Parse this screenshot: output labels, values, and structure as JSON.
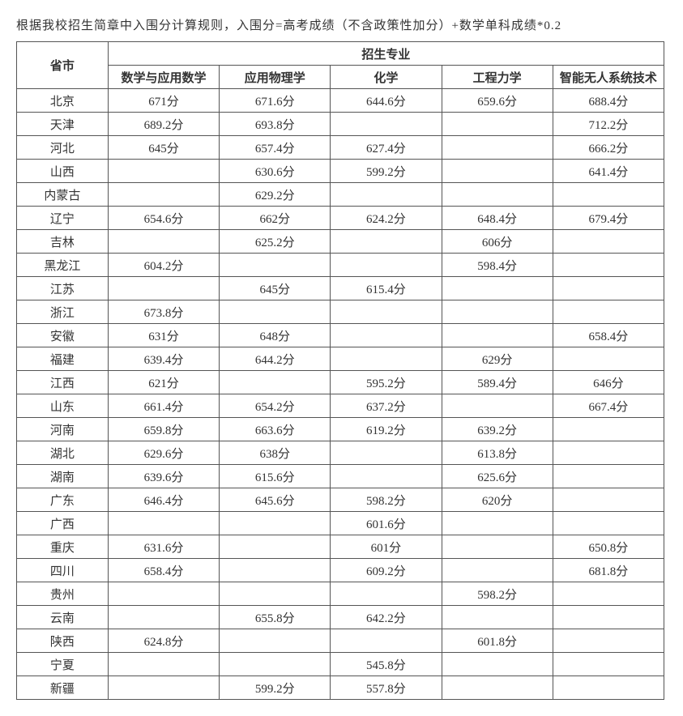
{
  "intro_text": "根据我校招生简章中入围分计算规则，入围分=高考成绩（不含政策性加分）+数学单科成绩*0.2",
  "header": {
    "province_label": "省市",
    "major_group_label": "招生专业",
    "majors": [
      "数学与应用数学",
      "应用物理学",
      "化学",
      "工程力学",
      "智能无人系统技术"
    ]
  },
  "rows": [
    {
      "province": "北京",
      "cells": [
        "671分",
        "671.6分",
        "644.6分",
        "659.6分",
        "688.4分"
      ]
    },
    {
      "province": "天津",
      "cells": [
        "689.2分",
        "693.8分",
        "",
        "",
        "712.2分"
      ]
    },
    {
      "province": "河北",
      "cells": [
        "645分",
        "657.4分",
        "627.4分",
        "",
        "666.2分"
      ]
    },
    {
      "province": "山西",
      "cells": [
        "",
        "630.6分",
        "599.2分",
        "",
        "641.4分"
      ]
    },
    {
      "province": "内蒙古",
      "cells": [
        "",
        "629.2分",
        "",
        "",
        ""
      ]
    },
    {
      "province": "辽宁",
      "cells": [
        "654.6分",
        "662分",
        "624.2分",
        "648.4分",
        "679.4分"
      ]
    },
    {
      "province": "吉林",
      "cells": [
        "",
        "625.2分",
        "",
        "606分",
        ""
      ]
    },
    {
      "province": "黑龙江",
      "cells": [
        "604.2分",
        "",
        "",
        "598.4分",
        ""
      ]
    },
    {
      "province": "江苏",
      "cells": [
        "",
        "645分",
        "615.4分",
        "",
        ""
      ]
    },
    {
      "province": "浙江",
      "cells": [
        "673.8分",
        "",
        "",
        "",
        ""
      ]
    },
    {
      "province": "安徽",
      "cells": [
        "631分",
        "648分",
        "",
        "",
        "658.4分"
      ]
    },
    {
      "province": "福建",
      "cells": [
        "639.4分",
        "644.2分",
        "",
        "629分",
        ""
      ]
    },
    {
      "province": "江西",
      "cells": [
        "621分",
        "",
        "595.2分",
        "589.4分",
        "646分"
      ]
    },
    {
      "province": "山东",
      "cells": [
        "661.4分",
        "654.2分",
        "637.2分",
        "",
        "667.4分"
      ]
    },
    {
      "province": "河南",
      "cells": [
        "659.8分",
        "663.6分",
        "619.2分",
        "639.2分",
        ""
      ]
    },
    {
      "province": "湖北",
      "cells": [
        "629.6分",
        "638分",
        "",
        "613.8分",
        ""
      ]
    },
    {
      "province": "湖南",
      "cells": [
        "639.6分",
        "615.6分",
        "",
        "625.6分",
        ""
      ]
    },
    {
      "province": "广东",
      "cells": [
        "646.4分",
        "645.6分",
        "598.2分",
        "620分",
        ""
      ]
    },
    {
      "province": "广西",
      "cells": [
        "",
        "",
        "601.6分",
        "",
        ""
      ]
    },
    {
      "province": "重庆",
      "cells": [
        "631.6分",
        "",
        "601分",
        "",
        "650.8分"
      ]
    },
    {
      "province": "四川",
      "cells": [
        "658.4分",
        "",
        "609.2分",
        "",
        "681.8分"
      ]
    },
    {
      "province": "贵州",
      "cells": [
        "",
        "",
        "",
        "598.2分",
        ""
      ]
    },
    {
      "province": "云南",
      "cells": [
        "",
        "655.8分",
        "642.2分",
        "",
        ""
      ]
    },
    {
      "province": "陕西",
      "cells": [
        "624.8分",
        "",
        "",
        "601.8分",
        ""
      ]
    },
    {
      "province": "宁夏",
      "cells": [
        "",
        "",
        "545.8分",
        "",
        ""
      ]
    },
    {
      "province": "新疆",
      "cells": [
        "",
        "599.2分",
        "557.8分",
        "",
        ""
      ]
    }
  ],
  "colors": {
    "text": "#333333",
    "border": "#555555",
    "background": "#ffffff"
  }
}
